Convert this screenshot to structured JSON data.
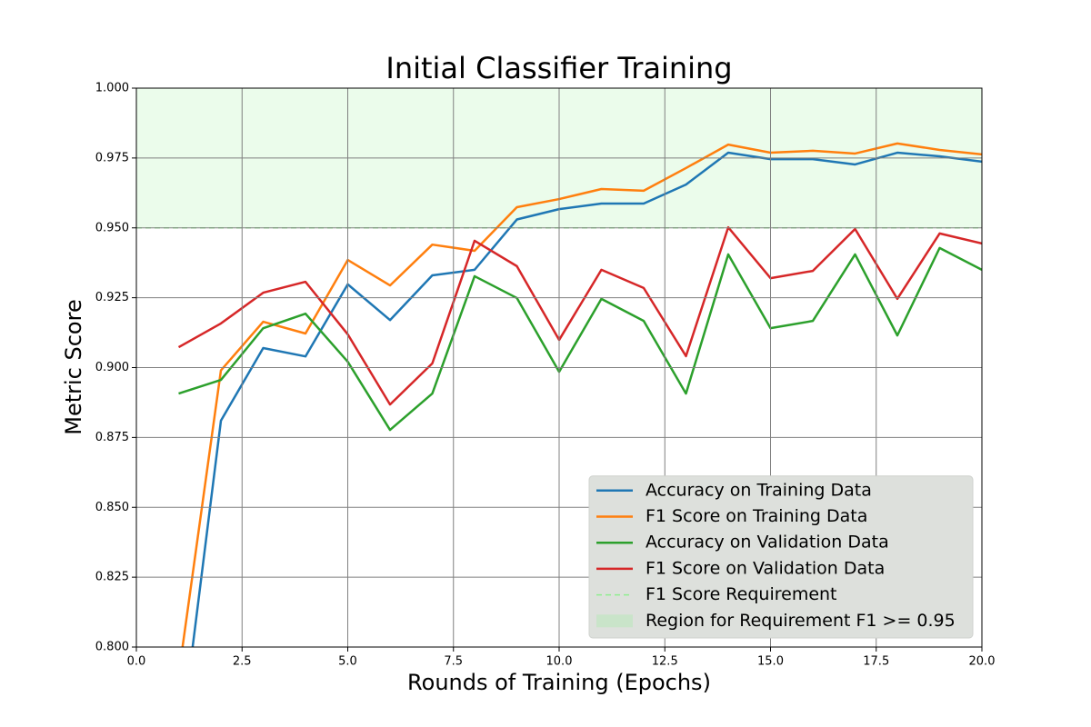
{
  "chart_data": {
    "type": "line",
    "title": "Initial Classifier Training",
    "x_label": "Rounds of Training (Epochs)",
    "y_label": "Metric Score",
    "x": [
      1,
      2,
      3,
      4,
      5,
      6,
      7,
      8,
      9,
      10,
      11,
      12,
      13,
      14,
      15,
      16,
      17,
      18,
      19,
      20
    ],
    "series": [
      {
        "name": "Accuracy on Training Data",
        "color": "#1f77b4",
        "values": [
          0.76,
          0.881,
          0.907,
          0.904,
          0.9298,
          0.917,
          0.933,
          0.935,
          0.953,
          0.9567,
          0.9587,
          0.9587,
          0.9655,
          0.9769,
          0.9746,
          0.9746,
          0.9727,
          0.9769,
          0.9756,
          0.9737
        ]
      },
      {
        "name": "F1 Score on Training Data",
        "color": "#ff7f0e",
        "values": [
          0.79,
          0.899,
          0.9164,
          0.9122,
          0.9385,
          0.9294,
          0.944,
          0.9418,
          0.9574,
          0.9603,
          0.9639,
          0.9633,
          0.9714,
          0.9798,
          0.9769,
          0.9776,
          0.9766,
          0.9802,
          0.9779,
          0.9763
        ]
      },
      {
        "name": "Accuracy on Validation Data",
        "color": "#2ca02c",
        "values": [
          0.8907,
          0.8956,
          0.9141,
          0.9193,
          0.9021,
          0.8777,
          0.8907,
          0.9327,
          0.9249,
          0.8985,
          0.9246,
          0.9167,
          0.8907,
          0.9405,
          0.9141,
          0.9167,
          0.9405,
          0.9115,
          0.9428,
          0.935
        ]
      },
      {
        "name": "F1 Score on Validation Data",
        "color": "#d62728",
        "values": [
          0.9073,
          0.9158,
          0.9268,
          0.9307,
          0.9119,
          0.8868,
          0.9015,
          0.9454,
          0.9363,
          0.9099,
          0.935,
          0.9285,
          0.9041,
          0.9502,
          0.932,
          0.9346,
          0.9496,
          0.9246,
          0.948,
          0.9444
        ]
      }
    ],
    "requirement": {
      "name": "F1 Score Requirement",
      "value": 0.95,
      "color": "#90ee90"
    },
    "region": {
      "name": "Region for Requirement F1 >= 0.95",
      "range": [
        0.95,
        1.0
      ],
      "color": "#90ee90"
    },
    "xlim": [
      0,
      20
    ],
    "ylim": [
      0.8,
      1.0
    ],
    "xticks": [
      {
        "value": 0,
        "label": "0.0"
      },
      {
        "value": 2.5,
        "label": "2.5"
      },
      {
        "value": 5,
        "label": "5.0"
      },
      {
        "value": 7.5,
        "label": "7.5"
      },
      {
        "value": 10,
        "label": "10.0"
      },
      {
        "value": 12.5,
        "label": "12.5"
      },
      {
        "value": 15,
        "label": "15.0"
      },
      {
        "value": 17.5,
        "label": "17.5"
      },
      {
        "value": 20,
        "label": "20.0"
      }
    ],
    "yticks": [
      {
        "value": 0.8,
        "label": "0.800"
      },
      {
        "value": 0.825,
        "label": "0.825"
      },
      {
        "value": 0.85,
        "label": "0.850"
      },
      {
        "value": 0.875,
        "label": "0.875"
      },
      {
        "value": 0.9,
        "label": "0.900"
      },
      {
        "value": 0.925,
        "label": "0.925"
      },
      {
        "value": 0.95,
        "label": "0.950"
      },
      {
        "value": 0.975,
        "label": "0.975"
      },
      {
        "value": 1.0,
        "label": "1.000"
      }
    ],
    "grid": true,
    "legend": "lower right"
  }
}
